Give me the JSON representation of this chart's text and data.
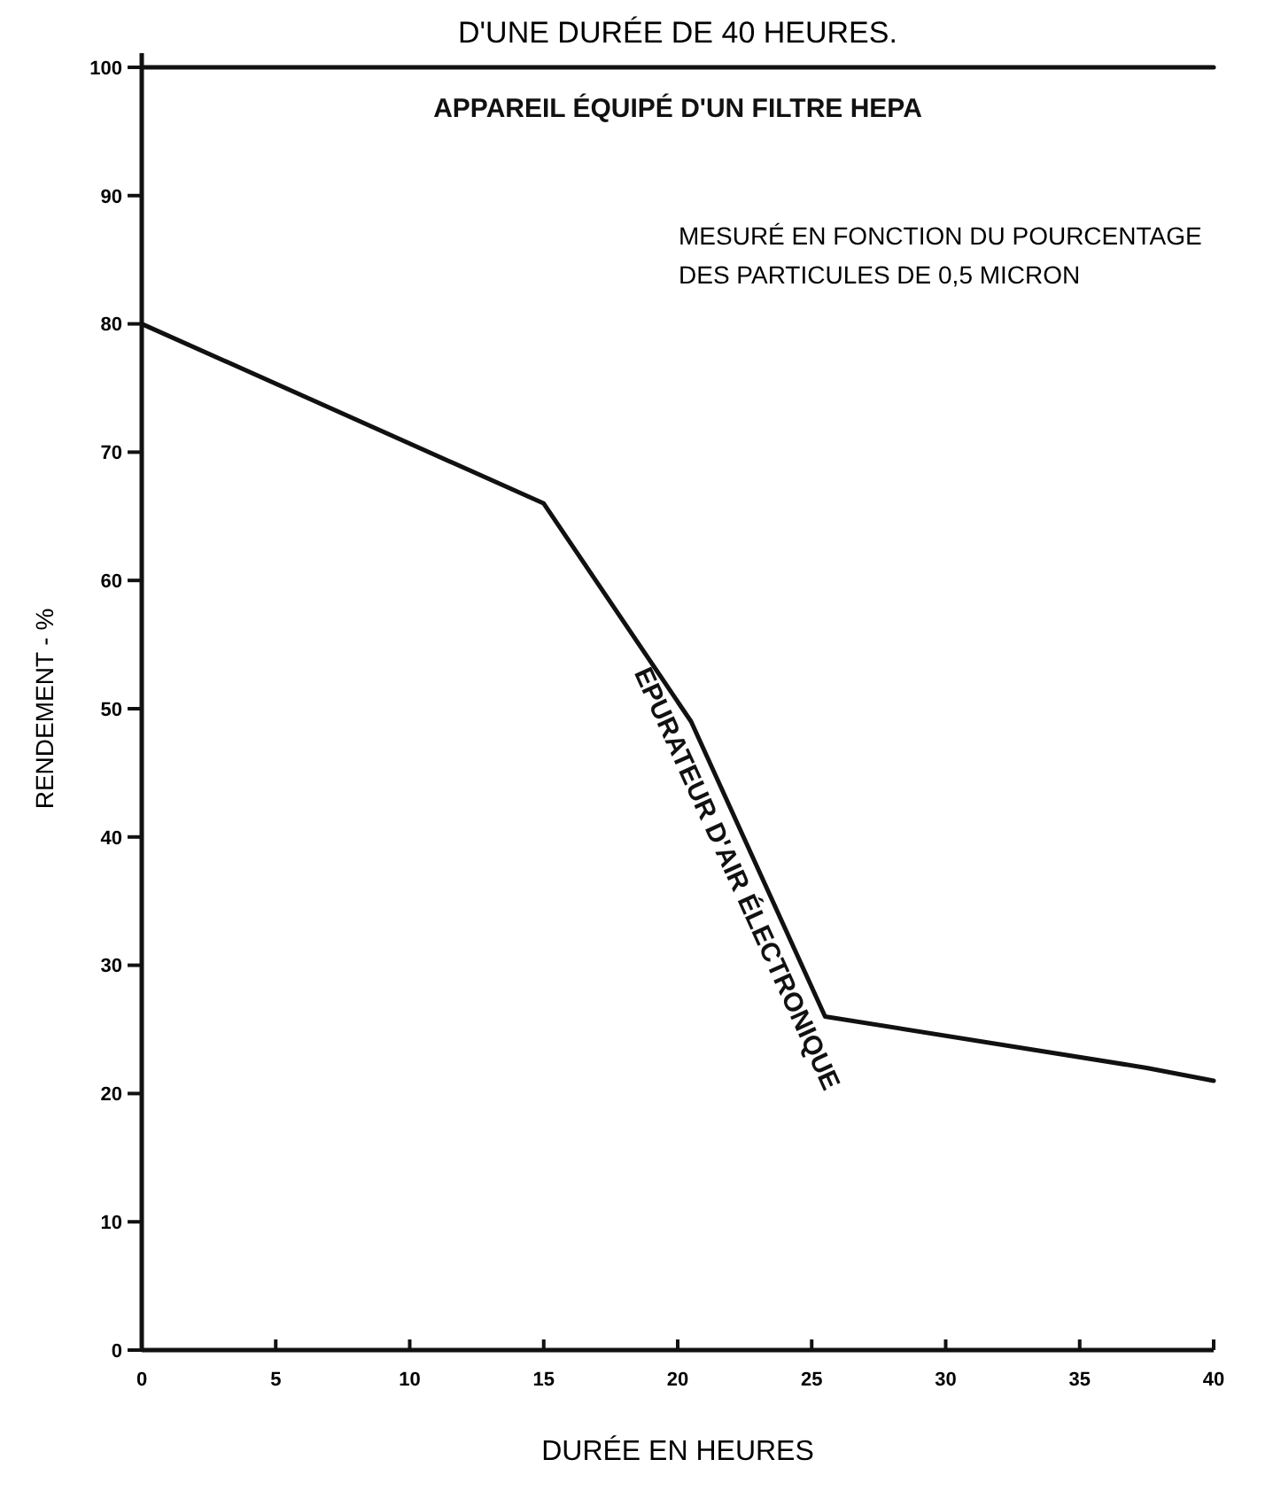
{
  "chart_data": {
    "type": "line",
    "title": "D'UNE DURÉE DE 40 HEURES.",
    "xlabel": "DURÉE EN HEURES",
    "ylabel": "RENDEMENT - %",
    "xlim": [
      0,
      40
    ],
    "xticks": [
      0,
      5,
      10,
      15,
      20,
      25,
      30,
      35,
      40
    ],
    "ylim": [
      0,
      100
    ],
    "yticks": [
      0,
      10,
      20,
      30,
      40,
      50,
      60,
      70,
      80,
      90,
      100
    ],
    "series": [
      {
        "name": "APPAREIL ÉQUIPÉ D'UN FILTRE HEPA",
        "color": "#111111",
        "x": [
          0,
          40
        ],
        "values": [
          100,
          100
        ]
      },
      {
        "name": "ÉPURATEUR D'AIR ÉLECTRONIQUE",
        "color": "#111111",
        "x": [
          0,
          15,
          20.5,
          25.5,
          37.5,
          40
        ],
        "values": [
          80,
          66,
          49,
          26,
          22,
          21
        ]
      }
    ],
    "annotations": [
      "MESURÉ EN FONCTION DU POURCENTAGE DES PARTICULES DE 0,5 MICRON"
    ],
    "grid": false,
    "marker": "none",
    "line_style": "solid"
  }
}
